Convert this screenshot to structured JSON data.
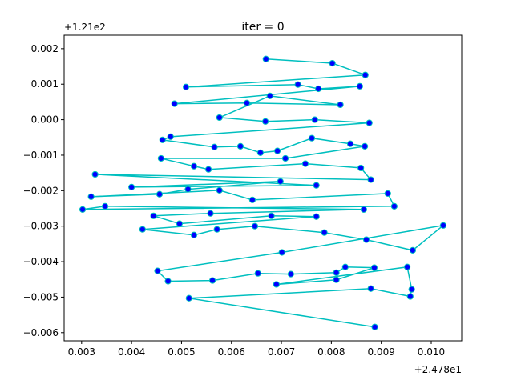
{
  "chart_data": {
    "type": "line",
    "title": "iter = 0",
    "xlabel": "",
    "ylabel": "",
    "x_offset_label": "+2.478e1",
    "y_offset_label": "+1.21e2",
    "xlim": [
      0.00265,
      0.01061
    ],
    "ylim": [
      -0.00623,
      0.00238
    ],
    "x_ticks": [
      "0.003",
      "0.004",
      "0.005",
      "0.006",
      "0.007",
      "0.008",
      "0.009",
      "0.010"
    ],
    "x_tick_values": [
      0.003,
      0.004,
      0.005,
      0.006,
      0.007,
      0.008,
      0.009,
      0.01
    ],
    "y_ticks": [
      "0.002",
      "0.001",
      "0.000",
      "−0.001",
      "−0.002",
      "−0.003",
      "−0.004",
      "−0.005",
      "−0.006"
    ],
    "y_tick_values": [
      0.002,
      0.001,
      0.0,
      -0.001,
      -0.002,
      -0.003,
      -0.004,
      -0.005,
      -0.006
    ],
    "grid": false,
    "line_color": "#00bfbf",
    "marker_color": "#0000ff",
    "series": [
      {
        "x": [
          0.00669,
          0.00802,
          0.00868,
          0.00509,
          0.00733,
          0.00774,
          0.00857,
          0.00486,
          0.00631,
          0.00818,
          0.00677,
          0.00576,
          0.00668,
          0.00767,
          0.00876,
          0.00478,
          0.00462,
          0.00566,
          0.00618,
          0.00658,
          0.00692,
          0.00761,
          0.00838,
          0.00867,
          0.00708,
          0.00459,
          0.00525,
          0.00554,
          0.00748,
          0.00859,
          0.00879,
          0.00327,
          0.0077,
          0.004,
          0.00698,
          0.00513,
          0.00456,
          0.00319,
          0.00576,
          0.00642,
          0.00913,
          0.00926,
          0.00302,
          0.00347,
          0.00865,
          0.00558,
          0.00444,
          0.00496,
          0.0068,
          0.0077,
          0.00422,
          0.00525,
          0.00571,
          0.00647,
          0.00786,
          0.0087,
          0.00963,
          0.01024,
          0.00701,
          0.00452,
          0.00473,
          0.00562,
          0.00653,
          0.00719,
          0.0081,
          0.00828,
          0.00886,
          0.0081,
          0.0069,
          0.00952,
          0.00961,
          0.00958,
          0.00879,
          0.00515,
          0.00887
        ],
        "y": [
          0.00171,
          0.00159,
          0.00126,
          0.00092,
          0.00099,
          0.00087,
          0.00094,
          0.00045,
          0.00047,
          0.00042,
          0.00067,
          6e-05,
          -5e-05,
          0.0,
          -9e-05,
          -0.00048,
          -0.00057,
          -0.00077,
          -0.00075,
          -0.00093,
          -0.00088,
          -0.00052,
          -0.00068,
          -0.00075,
          -0.00109,
          -0.00109,
          -0.00131,
          -0.0014,
          -0.00124,
          -0.00136,
          -0.00169,
          -0.00154,
          -0.00185,
          -0.0019,
          -0.00174,
          -0.00196,
          -0.0021,
          -0.00217,
          -0.00199,
          -0.00226,
          -0.00208,
          -0.00244,
          -0.00253,
          -0.00244,
          -0.00253,
          -0.00264,
          -0.00271,
          -0.00293,
          -0.00271,
          -0.00273,
          -0.00309,
          -0.00325,
          -0.00309,
          -0.003,
          -0.00318,
          -0.00338,
          -0.00368,
          -0.00298,
          -0.00374,
          -0.00426,
          -0.00455,
          -0.00453,
          -0.00433,
          -0.00435,
          -0.00431,
          -0.00415,
          -0.00417,
          -0.00451,
          -0.00464,
          -0.00415,
          -0.00478,
          -0.00498,
          -0.00476,
          -0.00503,
          -0.00584
        ]
      }
    ]
  }
}
